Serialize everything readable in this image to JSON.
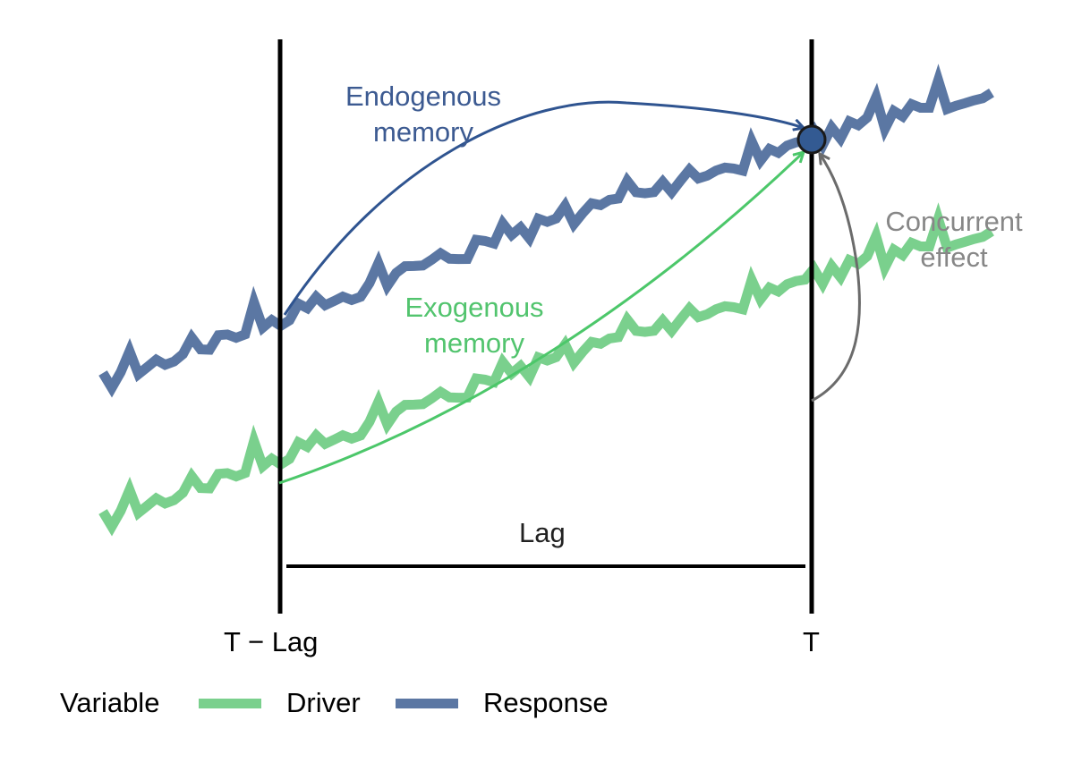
{
  "colors": {
    "driver": "#7ad08d",
    "response": "#5b77a3",
    "endogenous_arrow": "#2f5490",
    "exogenous_arrow": "#4cc76a",
    "concurrent_arrow": "#6b6b6b",
    "endogenous_text": "#3c5a91",
    "exogenous_text": "#52c46e",
    "concurrent_text": "#878787",
    "axis": "#000000",
    "point_fill": "#335a92"
  },
  "annotations": {
    "endogenous": [
      "Endogenous",
      "memory"
    ],
    "exogenous": [
      "Exogenous",
      "memory"
    ],
    "concurrent": [
      "Concurrent",
      "effect"
    ],
    "lag": "Lag"
  },
  "axis_labels": {
    "left_line": "T − Lag",
    "right_line": "T"
  },
  "legend": {
    "title": "Variable",
    "items": [
      {
        "label": "Driver",
        "color": "#7ad08d"
      },
      {
        "label": "Response",
        "color": "#5b77a3"
      }
    ]
  }
}
